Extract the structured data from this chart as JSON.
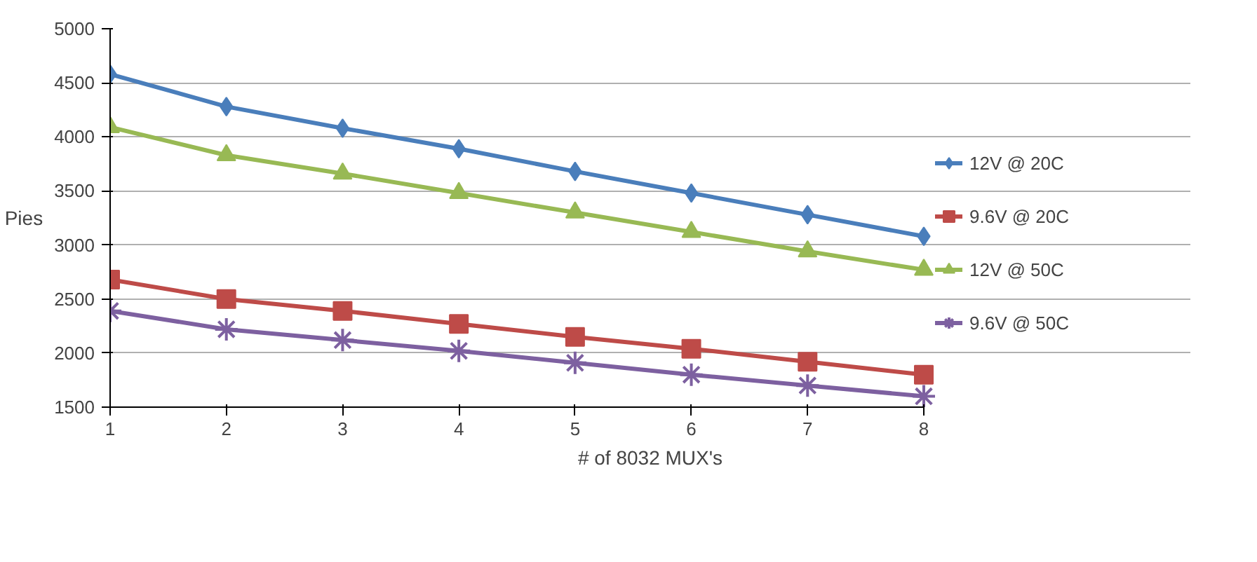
{
  "chart_data": {
    "type": "line",
    "xlabel": "# of 8032 MUX's",
    "ylabel": "Pies",
    "categories": [
      "1",
      "2",
      "3",
      "4",
      "5",
      "6",
      "7",
      "8"
    ],
    "ylim": [
      1500,
      5000
    ],
    "yticks": [
      1500,
      2000,
      2500,
      3000,
      3500,
      4000,
      4500,
      5000
    ],
    "grid": "y",
    "legend": "right",
    "series": [
      {
        "name": "12V @ 20C",
        "color": "#4a7ebb",
        "marker": "diamond",
        "values": [
          4580,
          4280,
          4080,
          3890,
          3680,
          3480,
          3280,
          3080
        ]
      },
      {
        "name": "9.6V @ 20C",
        "color": "#be4b48",
        "marker": "square",
        "values": [
          2680,
          2500,
          2390,
          2270,
          2150,
          2040,
          1920,
          1800
        ]
      },
      {
        "name": "12V @ 50C",
        "color": "#98b954",
        "marker": "triangle",
        "values": [
          4090,
          3830,
          3660,
          3480,
          3300,
          3120,
          2940,
          2770
        ]
      },
      {
        "name": "9.6V @ 50C",
        "color": "#7d60a0",
        "marker": "cross",
        "values": [
          2390,
          2220,
          2120,
          2020,
          1910,
          1800,
          1700,
          1600
        ]
      }
    ]
  }
}
